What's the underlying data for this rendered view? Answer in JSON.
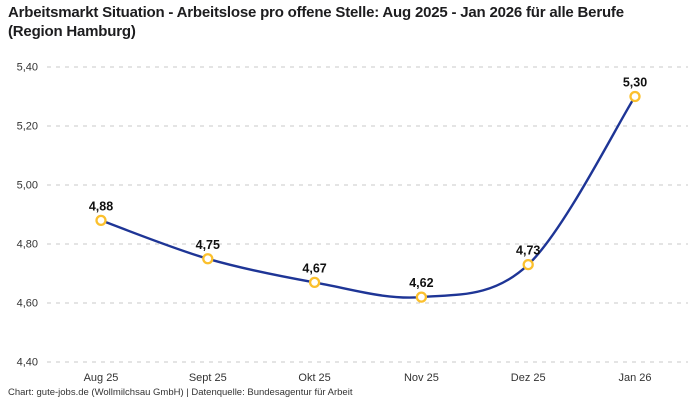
{
  "header": {
    "title": "Arbeitsmarkt Situation - Arbeitslose pro offene Stelle: Aug 2025 - Jan 2026 für alle Berufe (Region Hamburg)"
  },
  "footer": {
    "credit": "Chart: gute-jobs.de (Wollmilchsau GmbH) | Datenquelle: Bundesagentur für Arbeit"
  },
  "colors": {
    "line": "#1e3596",
    "marker_ring": "#fbc02d",
    "marker_fill": "#ffffff",
    "grid": "#c8c8c8",
    "title_text": "#1d1d1f",
    "axis_text": "#333333",
    "point_label_text": "#111111"
  },
  "chart_data": {
    "type": "line",
    "title": "Arbeitsmarkt Situation - Arbeitslose pro offene Stelle: Aug 2025 - Jan 2026 für alle Berufe (Region Hamburg)",
    "categories": [
      "Aug 25",
      "Sept 25",
      "Okt 25",
      "Nov 25",
      "Dez 25",
      "Jan 26"
    ],
    "values": [
      4.88,
      4.75,
      4.67,
      4.62,
      4.73,
      5.3
    ],
    "point_labels": [
      "4,88",
      "4,75",
      "4,67",
      "4,62",
      "4,73",
      "5,30"
    ],
    "series_name": "Arbeitslose pro offene Stelle",
    "xlabel": "",
    "ylabel": "",
    "ylim": [
      4.4,
      5.4
    ],
    "y_ticks": [
      {
        "value": 5.4,
        "label": "5,40"
      },
      {
        "value": 5.2,
        "label": "5,20"
      },
      {
        "value": 5.0,
        "label": "5,00"
      },
      {
        "value": 4.8,
        "label": "4,80"
      },
      {
        "value": 4.6,
        "label": "4,60"
      },
      {
        "value": 4.4,
        "label": "4,40"
      }
    ],
    "grid": "horizontal-dashed",
    "legend": "none",
    "curve": "smooth"
  }
}
